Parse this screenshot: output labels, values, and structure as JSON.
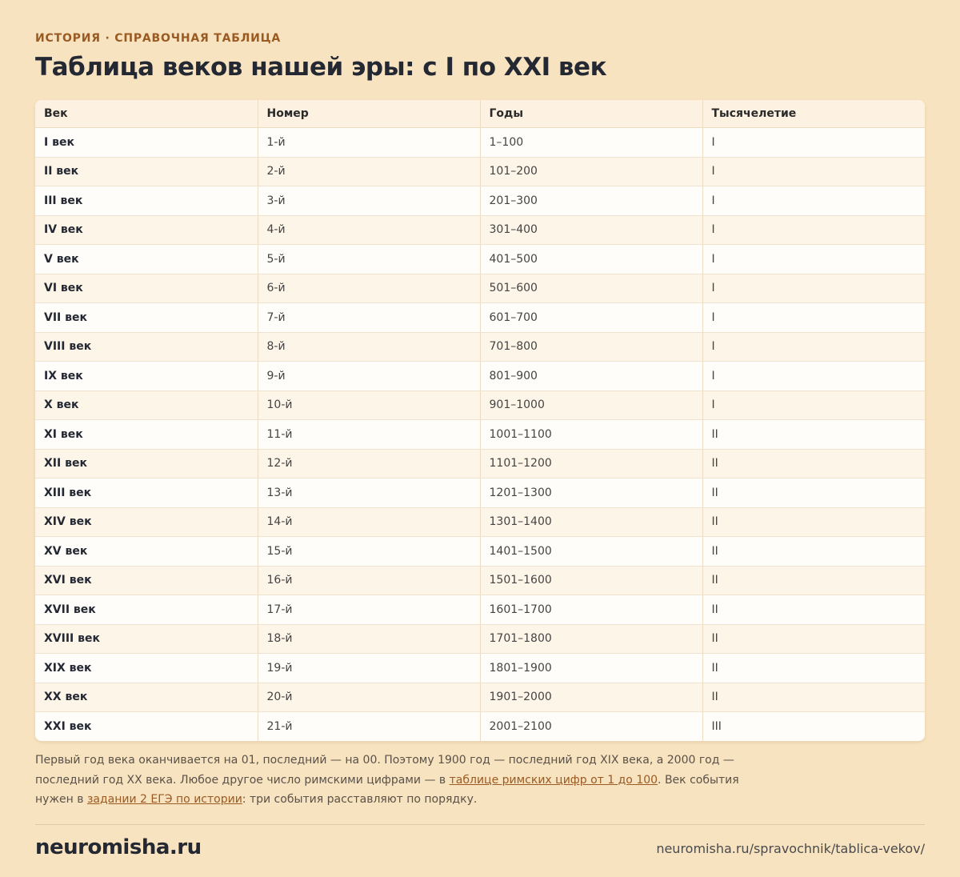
{
  "header": {
    "kicker": "ИСТОРИЯ · СПРАВОЧНАЯ ТАБЛИЦА",
    "title": "Таблица веков нашей эры: с I по XXI век"
  },
  "table": {
    "columns": [
      "Век",
      "Номер",
      "Годы",
      "Тысячелетие"
    ],
    "rows": [
      [
        "I век",
        "1-й",
        "1–100",
        "I"
      ],
      [
        "II век",
        "2-й",
        "101–200",
        "I"
      ],
      [
        "III век",
        "3-й",
        "201–300",
        "I"
      ],
      [
        "IV век",
        "4-й",
        "301–400",
        "I"
      ],
      [
        "V век",
        "5-й",
        "401–500",
        "I"
      ],
      [
        "VI век",
        "6-й",
        "501–600",
        "I"
      ],
      [
        "VII век",
        "7-й",
        "601–700",
        "I"
      ],
      [
        "VIII век",
        "8-й",
        "701–800",
        "I"
      ],
      [
        "IX век",
        "9-й",
        "801–900",
        "I"
      ],
      [
        "X век",
        "10-й",
        "901–1000",
        "I"
      ],
      [
        "XI век",
        "11-й",
        "1001–1100",
        "II"
      ],
      [
        "XII век",
        "12-й",
        "1101–1200",
        "II"
      ],
      [
        "XIII век",
        "13-й",
        "1201–1300",
        "II"
      ],
      [
        "XIV век",
        "14-й",
        "1301–1400",
        "II"
      ],
      [
        "XV век",
        "15-й",
        "1401–1500",
        "II"
      ],
      [
        "XVI век",
        "16-й",
        "1501–1600",
        "II"
      ],
      [
        "XVII век",
        "17-й",
        "1601–1700",
        "II"
      ],
      [
        "XVIII век",
        "18-й",
        "1701–1800",
        "II"
      ],
      [
        "XIX век",
        "19-й",
        "1801–1900",
        "II"
      ],
      [
        "XX век",
        "20-й",
        "1901–2000",
        "II"
      ],
      [
        "XXI век",
        "21-й",
        "2001–2100",
        "III"
      ]
    ]
  },
  "note": {
    "parts": [
      {
        "text": "Первый год века оканчивается на 01, последний — на 00. Поэтому 1900 год — последний год XIX века, а 2000 год — последний год XX века. Любое другое число римскими цифрами — в "
      },
      {
        "link": "таблице римских цифр от 1 до 100"
      },
      {
        "text": ". Век события нужен в "
      },
      {
        "link": "задании 2 ЕГЭ по истории"
      },
      {
        "text": ": три события расставляют по порядку."
      }
    ]
  },
  "footer": {
    "brand": "neuromisha.ru",
    "url": "neuromisha.ru/spravochnik/tablica-vekov/"
  }
}
